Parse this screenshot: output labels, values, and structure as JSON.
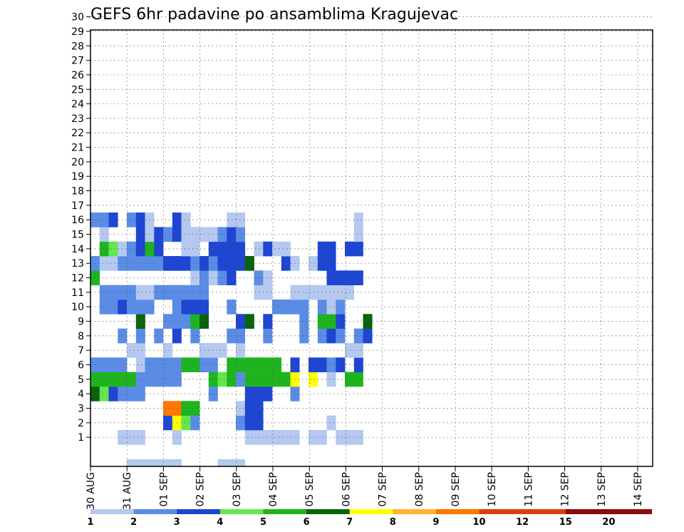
{
  "chart_data": {
    "type": "heatmap",
    "title": "GEFS 6hr padavine po ansamblima Kragujevac",
    "xlabel": "",
    "ylabel": "",
    "y_ticks": [
      "1",
      "2",
      "3",
      "4",
      "5",
      "6",
      "7",
      "8",
      "9",
      "10",
      "11",
      "12",
      "13",
      "14",
      "15",
      "16",
      "17",
      "18",
      "19",
      "20",
      "21",
      "22",
      "23",
      "24",
      "25",
      "26",
      "27",
      "28",
      "29",
      "30"
    ],
    "x_ticks": [
      "30 AUG",
      "31 AUG",
      "01 SEP",
      "02 SEP",
      "03 SEP",
      "04 SEP",
      "05 SEP",
      "06 SEP",
      "07 SEP",
      "08 SEP",
      "09 SEP",
      "10 SEP",
      "11 SEP",
      "12 SEP",
      "13 SEP",
      "14 SEP"
    ],
    "grid": true,
    "color_scale": {
      "labels": [
        "1",
        "2",
        "3",
        "4",
        "5",
        "6",
        "7",
        "8",
        "9",
        "10",
        "12",
        "15",
        "20"
      ],
      "colors": [
        "#b4c8f0",
        "#5a8ce6",
        "#1e46d2",
        "#64e650",
        "#1eb41e",
        "#0a640a",
        "#ffff00",
        "#ffb432",
        "#ff7800",
        "#e03c14",
        "#8c0a0a"
      ]
    },
    "cells": [
      [
        4,
        0,
        "#b4c8f0"
      ],
      [
        5,
        0,
        "#b4c8f0"
      ],
      [
        6,
        0,
        "#b4c8f0"
      ],
      [
        7,
        0,
        "#b4c8f0"
      ],
      [
        8,
        0,
        "#b4c8f0"
      ],
      [
        9,
        0,
        "#b4c8f0"
      ],
      [
        14,
        0,
        "#b4c8f0"
      ],
      [
        15,
        0,
        "#b4c8f0"
      ],
      [
        16,
        0,
        "#b4c8f0"
      ],
      [
        3,
        1,
        "#b4c8f0"
      ],
      [
        4,
        1,
        "#b4c8f0"
      ],
      [
        5,
        1,
        "#b4c8f0"
      ],
      [
        9,
        1,
        "#b4c8f0"
      ],
      [
        17,
        1,
        "#b4c8f0"
      ],
      [
        18,
        1,
        "#b4c8f0"
      ],
      [
        19,
        1,
        "#b4c8f0"
      ],
      [
        20,
        1,
        "#b4c8f0"
      ],
      [
        21,
        1,
        "#b4c8f0"
      ],
      [
        22,
        1,
        "#b4c8f0"
      ],
      [
        24,
        1,
        "#b4c8f0"
      ],
      [
        25,
        1,
        "#b4c8f0"
      ],
      [
        27,
        1,
        "#b4c8f0"
      ],
      [
        28,
        1,
        "#b4c8f0"
      ],
      [
        29,
        1,
        "#b4c8f0"
      ],
      [
        8,
        2,
        "#1e46d2"
      ],
      [
        9,
        2,
        "#ffff00"
      ],
      [
        10,
        2,
        "#64e650"
      ],
      [
        11,
        2,
        "#5a8ce6"
      ],
      [
        16,
        2,
        "#5a8ce6"
      ],
      [
        17,
        2,
        "#1e46d2"
      ],
      [
        18,
        2,
        "#1e46d2"
      ],
      [
        26,
        2,
        "#b4c8f0"
      ],
      [
        8,
        3,
        "#ff7800"
      ],
      [
        9,
        3,
        "#ff7800"
      ],
      [
        10,
        3,
        "#1eb41e"
      ],
      [
        11,
        3,
        "#1eb41e"
      ],
      [
        16,
        3,
        "#b4c8f0"
      ],
      [
        17,
        3,
        "#1e46d2"
      ],
      [
        18,
        3,
        "#1e46d2"
      ],
      [
        0,
        4,
        "#0a640a"
      ],
      [
        1,
        4,
        "#64e650"
      ],
      [
        2,
        4,
        "#1e46d2"
      ],
      [
        3,
        4,
        "#5a8ce6"
      ],
      [
        4,
        4,
        "#5a8ce6"
      ],
      [
        5,
        4,
        "#5a8ce6"
      ],
      [
        13,
        4,
        "#5a8ce6"
      ],
      [
        17,
        4,
        "#1e46d2"
      ],
      [
        18,
        4,
        "#1e46d2"
      ],
      [
        19,
        4,
        "#1e46d2"
      ],
      [
        22,
        4,
        "#5a8ce6"
      ],
      [
        0,
        5,
        "#1eb41e"
      ],
      [
        1,
        5,
        "#1eb41e"
      ],
      [
        2,
        5,
        "#1eb41e"
      ],
      [
        3,
        5,
        "#1eb41e"
      ],
      [
        4,
        5,
        "#1eb41e"
      ],
      [
        5,
        5,
        "#5a8ce6"
      ],
      [
        6,
        5,
        "#5a8ce6"
      ],
      [
        7,
        5,
        "#5a8ce6"
      ],
      [
        8,
        5,
        "#5a8ce6"
      ],
      [
        9,
        5,
        "#5a8ce6"
      ],
      [
        13,
        5,
        "#1eb41e"
      ],
      [
        14,
        5,
        "#64e650"
      ],
      [
        15,
        5,
        "#1eb41e"
      ],
      [
        16,
        5,
        "#5a8ce6"
      ],
      [
        17,
        5,
        "#1eb41e"
      ],
      [
        18,
        5,
        "#1eb41e"
      ],
      [
        19,
        5,
        "#1eb41e"
      ],
      [
        20,
        5,
        "#1eb41e"
      ],
      [
        21,
        5,
        "#1eb41e"
      ],
      [
        22,
        5,
        "#ffff00"
      ],
      [
        24,
        5,
        "#ffff00"
      ],
      [
        26,
        5,
        "#b4c8f0"
      ],
      [
        28,
        5,
        "#1eb41e"
      ],
      [
        29,
        5,
        "#1eb41e"
      ],
      [
        0,
        6,
        "#5a8ce6"
      ],
      [
        1,
        6,
        "#5a8ce6"
      ],
      [
        2,
        6,
        "#5a8ce6"
      ],
      [
        3,
        6,
        "#5a8ce6"
      ],
      [
        5,
        6,
        "#b4c8f0"
      ],
      [
        6,
        6,
        "#5a8ce6"
      ],
      [
        7,
        6,
        "#5a8ce6"
      ],
      [
        8,
        6,
        "#5a8ce6"
      ],
      [
        9,
        6,
        "#5a8ce6"
      ],
      [
        10,
        6,
        "#1eb41e"
      ],
      [
        11,
        6,
        "#1eb41e"
      ],
      [
        12,
        6,
        "#5a8ce6"
      ],
      [
        13,
        6,
        "#5a8ce6"
      ],
      [
        15,
        6,
        "#1eb41e"
      ],
      [
        16,
        6,
        "#1eb41e"
      ],
      [
        17,
        6,
        "#1eb41e"
      ],
      [
        18,
        6,
        "#1eb41e"
      ],
      [
        19,
        6,
        "#1eb41e"
      ],
      [
        20,
        6,
        "#1eb41e"
      ],
      [
        22,
        6,
        "#1e46d2"
      ],
      [
        24,
        6,
        "#1e46d2"
      ],
      [
        25,
        6,
        "#1e46d2"
      ],
      [
        26,
        6,
        "#5a8ce6"
      ],
      [
        27,
        6,
        "#1e46d2"
      ],
      [
        29,
        6,
        "#1e46d2"
      ],
      [
        4,
        7,
        "#b4c8f0"
      ],
      [
        5,
        7,
        "#b4c8f0"
      ],
      [
        8,
        7,
        "#b4c8f0"
      ],
      [
        12,
        7,
        "#b4c8f0"
      ],
      [
        13,
        7,
        "#b4c8f0"
      ],
      [
        14,
        7,
        "#b4c8f0"
      ],
      [
        16,
        7,
        "#b4c8f0"
      ],
      [
        28,
        7,
        "#b4c8f0"
      ],
      [
        29,
        7,
        "#b4c8f0"
      ],
      [
        3,
        8,
        "#5a8ce6"
      ],
      [
        5,
        8,
        "#5a8ce6"
      ],
      [
        7,
        8,
        "#5a8ce6"
      ],
      [
        9,
        8,
        "#1e46d2"
      ],
      [
        11,
        8,
        "#5a8ce6"
      ],
      [
        15,
        8,
        "#5a8ce6"
      ],
      [
        16,
        8,
        "#5a8ce6"
      ],
      [
        19,
        8,
        "#5a8ce6"
      ],
      [
        23,
        8,
        "#5a8ce6"
      ],
      [
        25,
        8,
        "#5a8ce6"
      ],
      [
        26,
        8,
        "#1e46d2"
      ],
      [
        27,
        8,
        "#5a8ce6"
      ],
      [
        29,
        8,
        "#5a8ce6"
      ],
      [
        30,
        8,
        "#1e46d2"
      ],
      [
        5,
        9,
        "#0a640a"
      ],
      [
        8,
        9,
        "#5a8ce6"
      ],
      [
        9,
        9,
        "#5a8ce6"
      ],
      [
        10,
        9,
        "#5a8ce6"
      ],
      [
        11,
        9,
        "#1eb41e"
      ],
      [
        12,
        9,
        "#0a640a"
      ],
      [
        16,
        9,
        "#1e46d2"
      ],
      [
        17,
        9,
        "#0a640a"
      ],
      [
        19,
        9,
        "#1e46d2"
      ],
      [
        23,
        9,
        "#5a8ce6"
      ],
      [
        25,
        9,
        "#1eb41e"
      ],
      [
        26,
        9,
        "#1eb41e"
      ],
      [
        27,
        9,
        "#1e46d2"
      ],
      [
        30,
        9,
        "#0a640a"
      ],
      [
        1,
        10,
        "#5a8ce6"
      ],
      [
        2,
        10,
        "#5a8ce6"
      ],
      [
        3,
        10,
        "#1e46d2"
      ],
      [
        4,
        10,
        "#5a8ce6"
      ],
      [
        5,
        10,
        "#5a8ce6"
      ],
      [
        6,
        10,
        "#5a8ce6"
      ],
      [
        9,
        10,
        "#5a8ce6"
      ],
      [
        10,
        10,
        "#1e46d2"
      ],
      [
        11,
        10,
        "#1e46d2"
      ],
      [
        12,
        10,
        "#1e46d2"
      ],
      [
        15,
        10,
        "#5a8ce6"
      ],
      [
        20,
        10,
        "#5a8ce6"
      ],
      [
        21,
        10,
        "#5a8ce6"
      ],
      [
        22,
        10,
        "#5a8ce6"
      ],
      [
        23,
        10,
        "#5a8ce6"
      ],
      [
        25,
        10,
        "#5a8ce6"
      ],
      [
        26,
        10,
        "#b4c8f0"
      ],
      [
        27,
        10,
        "#5a8ce6"
      ],
      [
        1,
        11,
        "#5a8ce6"
      ],
      [
        2,
        11,
        "#5a8ce6"
      ],
      [
        3,
        11,
        "#5a8ce6"
      ],
      [
        4,
        11,
        "#5a8ce6"
      ],
      [
        5,
        11,
        "#b4c8f0"
      ],
      [
        6,
        11,
        "#b4c8f0"
      ],
      [
        7,
        11,
        "#5a8ce6"
      ],
      [
        8,
        11,
        "#5a8ce6"
      ],
      [
        9,
        11,
        "#5a8ce6"
      ],
      [
        10,
        11,
        "#5a8ce6"
      ],
      [
        11,
        11,
        "#5a8ce6"
      ],
      [
        12,
        11,
        "#5a8ce6"
      ],
      [
        18,
        11,
        "#b4c8f0"
      ],
      [
        19,
        11,
        "#b4c8f0"
      ],
      [
        22,
        11,
        "#b4c8f0"
      ],
      [
        23,
        11,
        "#b4c8f0"
      ],
      [
        24,
        11,
        "#b4c8f0"
      ],
      [
        25,
        11,
        "#b4c8f0"
      ],
      [
        26,
        11,
        "#b4c8f0"
      ],
      [
        27,
        11,
        "#b4c8f0"
      ],
      [
        28,
        11,
        "#b4c8f0"
      ],
      [
        0,
        12,
        "#1eb41e"
      ],
      [
        11,
        12,
        "#b4c8f0"
      ],
      [
        12,
        12,
        "#5a8ce6"
      ],
      [
        13,
        12,
        "#b4c8f0"
      ],
      [
        14,
        12,
        "#5a8ce6"
      ],
      [
        15,
        12,
        "#1e46d2"
      ],
      [
        18,
        12,
        "#5a8ce6"
      ],
      [
        19,
        12,
        "#b4c8f0"
      ],
      [
        26,
        12,
        "#1e46d2"
      ],
      [
        27,
        12,
        "#1e46d2"
      ],
      [
        28,
        12,
        "#1e46d2"
      ],
      [
        29,
        12,
        "#1e46d2"
      ],
      [
        0,
        13,
        "#5a8ce6"
      ],
      [
        1,
        13,
        "#b4c8f0"
      ],
      [
        2,
        13,
        "#b4c8f0"
      ],
      [
        3,
        13,
        "#5a8ce6"
      ],
      [
        4,
        13,
        "#5a8ce6"
      ],
      [
        5,
        13,
        "#5a8ce6"
      ],
      [
        6,
        13,
        "#5a8ce6"
      ],
      [
        7,
        13,
        "#5a8ce6"
      ],
      [
        8,
        13,
        "#1e46d2"
      ],
      [
        9,
        13,
        "#1e46d2"
      ],
      [
        10,
        13,
        "#1e46d2"
      ],
      [
        11,
        13,
        "#5a8ce6"
      ],
      [
        12,
        13,
        "#1e46d2"
      ],
      [
        13,
        13,
        "#5a8ce6"
      ],
      [
        14,
        13,
        "#1e46d2"
      ],
      [
        15,
        13,
        "#1e46d2"
      ],
      [
        16,
        13,
        "#1e46d2"
      ],
      [
        17,
        13,
        "#0a640a"
      ],
      [
        21,
        13,
        "#1e46d2"
      ],
      [
        22,
        13,
        "#b4c8f0"
      ],
      [
        24,
        13,
        "#b4c8f0"
      ],
      [
        25,
        13,
        "#1e46d2"
      ],
      [
        26,
        13,
        "#1e46d2"
      ],
      [
        1,
        14,
        "#1eb41e"
      ],
      [
        2,
        14,
        "#64e650"
      ],
      [
        3,
        14,
        "#b4c8f0"
      ],
      [
        4,
        14,
        "#5a8ce6"
      ],
      [
        5,
        14,
        "#1e46d2"
      ],
      [
        6,
        14,
        "#1eb41e"
      ],
      [
        7,
        14,
        "#1e46d2"
      ],
      [
        10,
        14,
        "#b4c8f0"
      ],
      [
        11,
        14,
        "#b4c8f0"
      ],
      [
        13,
        14,
        "#1e46d2"
      ],
      [
        14,
        14,
        "#1e46d2"
      ],
      [
        15,
        14,
        "#1e46d2"
      ],
      [
        16,
        14,
        "#1e46d2"
      ],
      [
        18,
        14,
        "#b4c8f0"
      ],
      [
        19,
        14,
        "#1e46d2"
      ],
      [
        20,
        14,
        "#b4c8f0"
      ],
      [
        21,
        14,
        "#b4c8f0"
      ],
      [
        25,
        14,
        "#1e46d2"
      ],
      [
        26,
        14,
        "#1e46d2"
      ],
      [
        28,
        14,
        "#1e46d2"
      ],
      [
        29,
        14,
        "#1e46d2"
      ],
      [
        1,
        15,
        "#b4c8f0"
      ],
      [
        5,
        15,
        "#1e46d2"
      ],
      [
        6,
        15,
        "#b4c8f0"
      ],
      [
        7,
        15,
        "#1e46d2"
      ],
      [
        8,
        15,
        "#5a8ce6"
      ],
      [
        9,
        15,
        "#1e46d2"
      ],
      [
        10,
        15,
        "#b4c8f0"
      ],
      [
        11,
        15,
        "#b4c8f0"
      ],
      [
        12,
        15,
        "#b4c8f0"
      ],
      [
        13,
        15,
        "#b4c8f0"
      ],
      [
        14,
        15,
        "#5a8ce6"
      ],
      [
        15,
        15,
        "#1e46d2"
      ],
      [
        16,
        15,
        "#5a8ce6"
      ],
      [
        29,
        15,
        "#b4c8f0"
      ],
      [
        0,
        16,
        "#5a8ce6"
      ],
      [
        1,
        16,
        "#5a8ce6"
      ],
      [
        2,
        16,
        "#1e46d2"
      ],
      [
        4,
        16,
        "#5a8ce6"
      ],
      [
        5,
        16,
        "#1e46d2"
      ],
      [
        6,
        16,
        "#b4c8f0"
      ],
      [
        9,
        16,
        "#1e46d2"
      ],
      [
        10,
        16,
        "#b4c8f0"
      ],
      [
        15,
        16,
        "#b4c8f0"
      ],
      [
        16,
        16,
        "#b4c8f0"
      ],
      [
        29,
        16,
        "#b4c8f0"
      ]
    ]
  }
}
